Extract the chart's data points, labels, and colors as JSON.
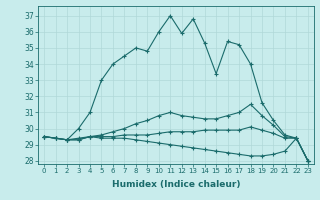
{
  "xlabel": "Humidex (Indice chaleur)",
  "background_color": "#c8ecec",
  "grid_color": "#b0d8d8",
  "line_color": "#1a6b6b",
  "x": [
    0,
    1,
    2,
    3,
    4,
    5,
    6,
    7,
    8,
    9,
    10,
    11,
    12,
    13,
    14,
    15,
    16,
    17,
    18,
    19,
    20,
    21,
    22,
    23
  ],
  "line_max": [
    29.5,
    29.4,
    29.3,
    30.0,
    31.0,
    33.0,
    34.0,
    34.5,
    35.0,
    34.8,
    36.0,
    37.0,
    35.9,
    36.8,
    35.3,
    33.4,
    35.4,
    35.2,
    34.0,
    31.6,
    30.5,
    29.6,
    29.4,
    28.0
  ],
  "line_q3": [
    29.5,
    29.4,
    29.3,
    29.4,
    29.5,
    29.6,
    29.8,
    30.0,
    30.3,
    30.5,
    30.8,
    31.0,
    30.8,
    30.7,
    30.6,
    30.6,
    30.8,
    31.0,
    31.5,
    30.8,
    30.2,
    29.5,
    29.4,
    28.0
  ],
  "line_med": [
    29.5,
    29.4,
    29.3,
    29.3,
    29.5,
    29.5,
    29.5,
    29.6,
    29.6,
    29.6,
    29.7,
    29.8,
    29.8,
    29.8,
    29.9,
    29.9,
    29.9,
    29.9,
    30.1,
    29.9,
    29.7,
    29.4,
    29.4,
    28.0
  ],
  "line_min": [
    29.5,
    29.4,
    29.3,
    29.3,
    29.5,
    29.4,
    29.4,
    29.4,
    29.3,
    29.2,
    29.1,
    29.0,
    28.9,
    28.8,
    28.7,
    28.6,
    28.5,
    28.4,
    28.3,
    28.3,
    28.4,
    28.6,
    29.4,
    28.0
  ],
  "xlim": [
    -0.5,
    23.5
  ],
  "ylim": [
    27.8,
    37.6
  ],
  "yticks": [
    28,
    29,
    30,
    31,
    32,
    33,
    34,
    35,
    36,
    37
  ],
  "xticks": [
    0,
    1,
    2,
    3,
    4,
    5,
    6,
    7,
    8,
    9,
    10,
    11,
    12,
    13,
    14,
    15,
    16,
    17,
    18,
    19,
    20,
    21,
    22,
    23
  ]
}
